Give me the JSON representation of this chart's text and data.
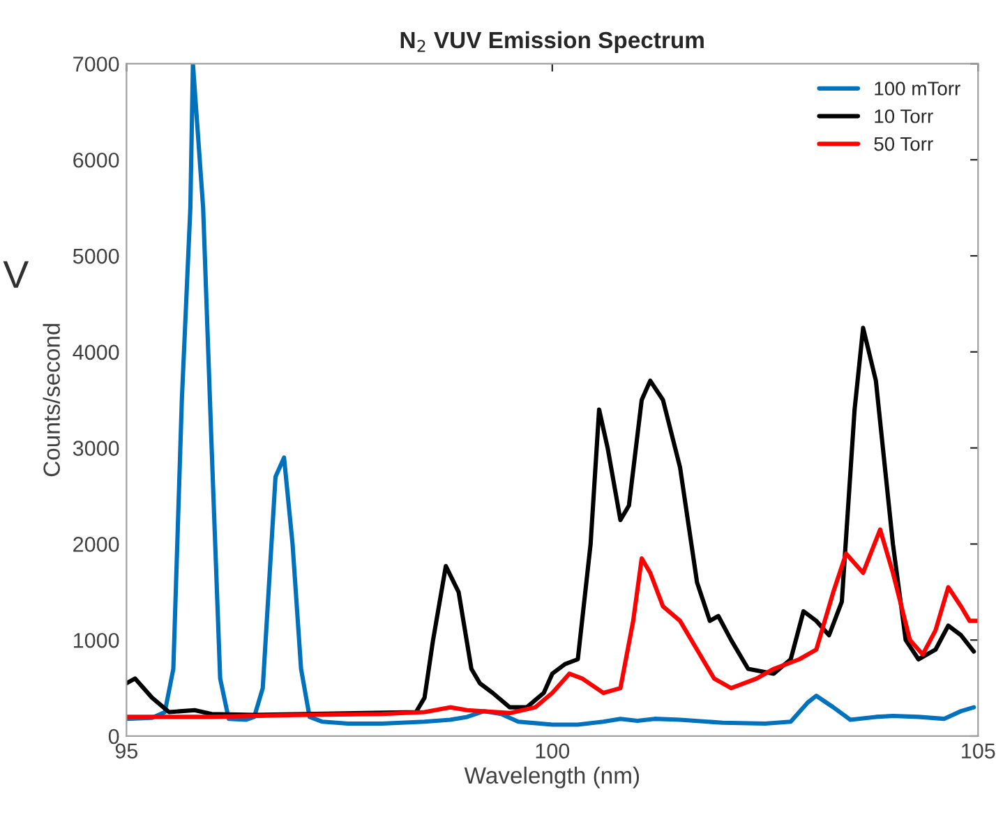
{
  "chart_data": {
    "type": "line",
    "title": "N$_{2}$ VUV Emission Spectrum",
    "xlabel": "Wavelength (nm)",
    "ylabel": "Counts/second",
    "annotations": [
      "V"
    ],
    "xlim": [
      95,
      105
    ],
    "xticks": [
      95,
      100,
      105
    ],
    "ylim": [
      0,
      7000
    ],
    "yticks": [
      0,
      1000,
      2000,
      3000,
      4000,
      5000,
      6000,
      7000
    ],
    "grid": false,
    "legend": "top right",
    "series": [
      {
        "name": "100 mTorr",
        "color": "#0072bd",
        "x": [
          95.0,
          95.3,
          95.45,
          95.55,
          95.65,
          95.75,
          95.78,
          95.9,
          96.0,
          96.1,
          96.2,
          96.4,
          96.5,
          96.6,
          96.75,
          96.85,
          96.95,
          97.05,
          97.15,
          97.3,
          97.6,
          98.0,
          98.5,
          98.8,
          99.0,
          99.2,
          99.4,
          99.6,
          100.0,
          100.3,
          100.6,
          100.8,
          101.0,
          101.2,
          101.5,
          102.0,
          102.5,
          102.8,
          103.0,
          103.1,
          103.3,
          103.5,
          103.8,
          104.0,
          104.3,
          104.6,
          104.8,
          104.95
        ],
        "values": [
          180,
          190,
          250,
          700,
          3500,
          5500,
          7000,
          5500,
          3000,
          600,
          180,
          170,
          200,
          500,
          2700,
          2900,
          2000,
          700,
          200,
          150,
          130,
          130,
          150,
          170,
          200,
          260,
          230,
          150,
          120,
          120,
          150,
          180,
          160,
          180,
          170,
          140,
          130,
          150,
          350,
          420,
          300,
          170,
          200,
          210,
          200,
          180,
          260,
          300
        ]
      },
      {
        "name": "10 Torr",
        "color": "#000000",
        "x": [
          95.0,
          95.1,
          95.3,
          95.5,
          95.8,
          96.0,
          96.5,
          98.4,
          98.5,
          98.6,
          98.75,
          98.9,
          99.05,
          99.15,
          99.3,
          99.5,
          99.7,
          99.9,
          100.0,
          100.15,
          100.3,
          100.45,
          100.55,
          100.65,
          100.8,
          100.9,
          101.05,
          101.15,
          101.3,
          101.5,
          101.7,
          101.85,
          101.95,
          102.1,
          102.3,
          102.6,
          102.8,
          102.95,
          103.1,
          103.25,
          103.4,
          103.55,
          103.65,
          103.8,
          104.0,
          104.15,
          104.3,
          104.5,
          104.65,
          104.8,
          104.95
        ],
        "values": [
          550,
          600,
          400,
          250,
          270,
          230,
          220,
          250,
          400,
          1000,
          1770,
          1500,
          700,
          550,
          450,
          300,
          300,
          450,
          650,
          750,
          800,
          2000,
          3400,
          3000,
          2250,
          2400,
          3500,
          3700,
          3500,
          2800,
          1600,
          1200,
          1250,
          1000,
          700,
          650,
          800,
          1300,
          1200,
          1050,
          1400,
          3400,
          4250,
          3700,
          2000,
          1000,
          800,
          900,
          1150,
          1050,
          880
        ]
      },
      {
        "name": "50 Torr",
        "color": "#ff0000",
        "x": [
          95.0,
          96.0,
          97.0,
          98.0,
          98.5,
          98.8,
          99.0,
          99.5,
          99.8,
          100.0,
          100.2,
          100.35,
          100.6,
          100.8,
          100.95,
          101.05,
          101.15,
          101.3,
          101.5,
          101.7,
          101.9,
          102.1,
          102.4,
          102.6,
          102.9,
          103.1,
          103.3,
          103.45,
          103.65,
          103.85,
          104.0,
          104.2,
          104.35,
          104.5,
          104.65,
          104.8,
          104.9,
          105.0
        ],
        "values": [
          200,
          200,
          220,
          230,
          250,
          300,
          270,
          240,
          300,
          450,
          650,
          600,
          450,
          500,
          1200,
          1850,
          1700,
          1350,
          1200,
          900,
          600,
          500,
          600,
          700,
          800,
          900,
          1500,
          1900,
          1700,
          2150,
          1700,
          1000,
          850,
          1100,
          1550,
          1350,
          1200,
          1200
        ]
      }
    ]
  }
}
